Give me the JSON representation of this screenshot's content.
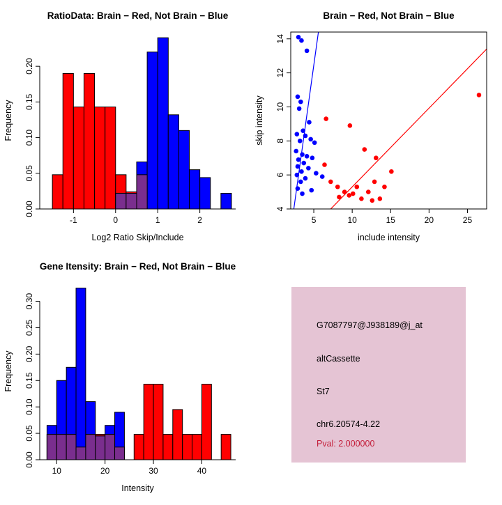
{
  "chart_data": [
    {
      "id": "ratio_histogram",
      "type": "histogram",
      "title": "RatioData: Brain − Red, Not Brain − Blue",
      "xlabel": "Log2 Ratio Skip/Include",
      "ylabel": "Frequency",
      "xlim": [
        -1.8,
        2.85
      ],
      "ylim": [
        0,
        0.248
      ],
      "xticks": [
        "-1",
        "0",
        "1",
        "2"
      ],
      "yticks": [
        "0.00",
        "0.05",
        "0.10",
        "0.15",
        "0.20"
      ],
      "box": false,
      "overlap_color": "#7A2E8E",
      "series": [
        {
          "name": "Brain",
          "color": "#FF0000",
          "bin_start": -1.5,
          "bin_width": 0.25,
          "freqs": [
            0.048,
            0.19,
            0.143,
            0.19,
            0.143,
            0.143,
            0.048,
            0.024,
            0.048
          ]
        },
        {
          "name": "Not Brain",
          "color": "#0000FF",
          "bin_start": 0,
          "bin_width": 0.25,
          "freqs": [
            0.022,
            0.022,
            0.066,
            0.22,
            0.24,
            0.132,
            0.11,
            0.055,
            0.044,
            0,
            0.022
          ]
        }
      ]
    },
    {
      "id": "intensity_scatter",
      "type": "scatter",
      "title": "Brain − Red, Not Brain − Blue",
      "xlabel": "include intensity",
      "ylabel": "skip intensity",
      "xlim": [
        2,
        27.5
      ],
      "ylim": [
        4,
        14.4
      ],
      "xticks": [
        "5",
        "10",
        "15",
        "20",
        "25"
      ],
      "yticks": [
        "4",
        "6",
        "8",
        "10",
        "12",
        "14"
      ],
      "box": true,
      "series": [
        {
          "name": "Not Brain",
          "color": "#0000FF",
          "points": [
            [
              3,
              14.1
            ],
            [
              3.4,
              13.9
            ],
            [
              4.1,
              13.3
            ],
            [
              2.9,
              10.6
            ],
            [
              3.3,
              10.3
            ],
            [
              3.1,
              9.9
            ],
            [
              4.4,
              9.1
            ],
            [
              3.6,
              8.6
            ],
            [
              2.8,
              8.4
            ],
            [
              3.9,
              8.3
            ],
            [
              4.6,
              8.1
            ],
            [
              3.2,
              8
            ],
            [
              5.1,
              7.9
            ],
            [
              2.7,
              7.4
            ],
            [
              3.5,
              7.2
            ],
            [
              4.1,
              7.1
            ],
            [
              4.8,
              7
            ],
            [
              3,
              6.9
            ],
            [
              3.7,
              6.7
            ],
            [
              2.9,
              6.5
            ],
            [
              4.3,
              6.4
            ],
            [
              3.4,
              6.2
            ],
            [
              5.3,
              6.1
            ],
            [
              2.8,
              6
            ],
            [
              3.9,
              5.8
            ],
            [
              3.3,
              5.6
            ],
            [
              6.1,
              5.9
            ],
            [
              2.9,
              5.2
            ],
            [
              4.7,
              5.1
            ],
            [
              3.5,
              4.9
            ]
          ]
        },
        {
          "name": "Brain",
          "color": "#FF0000",
          "points": [
            [
              6.4,
              6.6
            ],
            [
              6.6,
              9.3
            ],
            [
              7.2,
              5.6
            ],
            [
              8.1,
              5.3
            ],
            [
              8.3,
              4.7
            ],
            [
              9,
              5
            ],
            [
              9.6,
              4.8
            ],
            [
              9.7,
              8.9
            ],
            [
              10.1,
              4.9
            ],
            [
              10.6,
              5.3
            ],
            [
              11.2,
              4.6
            ],
            [
              11.6,
              7.5
            ],
            [
              12.1,
              5
            ],
            [
              12.6,
              4.5
            ],
            [
              12.9,
              5.6
            ],
            [
              13.1,
              7
            ],
            [
              13.6,
              4.6
            ],
            [
              14.2,
              5.3
            ],
            [
              15.1,
              6.2
            ],
            [
              26.5,
              10.7
            ]
          ]
        }
      ],
      "lines": [
        {
          "color": "#0000FF",
          "x1": 2.4,
          "y1": 4,
          "x2": 5.6,
          "y2": 14.4
        },
        {
          "color": "#FF0000",
          "x1": 7.2,
          "y1": 4,
          "x2": 27.5,
          "y2": 13.4
        }
      ]
    },
    {
      "id": "gene_intensity_histogram",
      "type": "histogram",
      "title": "Gene Itensity: Brain − Red, Not Brain − Blue",
      "xlabel": "Intensity",
      "ylabel": "Frequency",
      "xlim": [
        6.5,
        47
      ],
      "ylim": [
        0,
        0.335
      ],
      "xticks": [
        "10",
        "20",
        "30",
        "40"
      ],
      "yticks": [
        "0.00",
        "0.05",
        "0.10",
        "0.15",
        "0.20",
        "0.25",
        "0.30"
      ],
      "box": false,
      "overlap_color": "#7A2E8E",
      "series": [
        {
          "name": "Brain",
          "color": "#FF0000",
          "bin_start": 8,
          "bin_width": 2,
          "freqs": [
            0.048,
            0.048,
            0.048,
            0.024,
            0.048,
            0.048,
            0.048,
            0.024,
            0,
            0.048,
            0.143,
            0.143,
            0.048,
            0.095,
            0.048,
            0.048,
            0.143,
            0,
            0.048
          ]
        },
        {
          "name": "Not Brain",
          "color": "#0000FF",
          "bin_start": 8,
          "bin_width": 2,
          "freqs": [
            0.065,
            0.15,
            0.175,
            0.325,
            0.11,
            0.045,
            0.065,
            0.09
          ]
        }
      ]
    }
  ],
  "info_box": {
    "bg": "#E5C4D4",
    "text_color": "#000000",
    "pval_color": "#C41E3A",
    "lines": [
      "G7087797@J938189@j_at",
      "altCassette",
      "St7",
      "chr6.20574-4.22"
    ],
    "pval": "Pval: 2.000000"
  }
}
